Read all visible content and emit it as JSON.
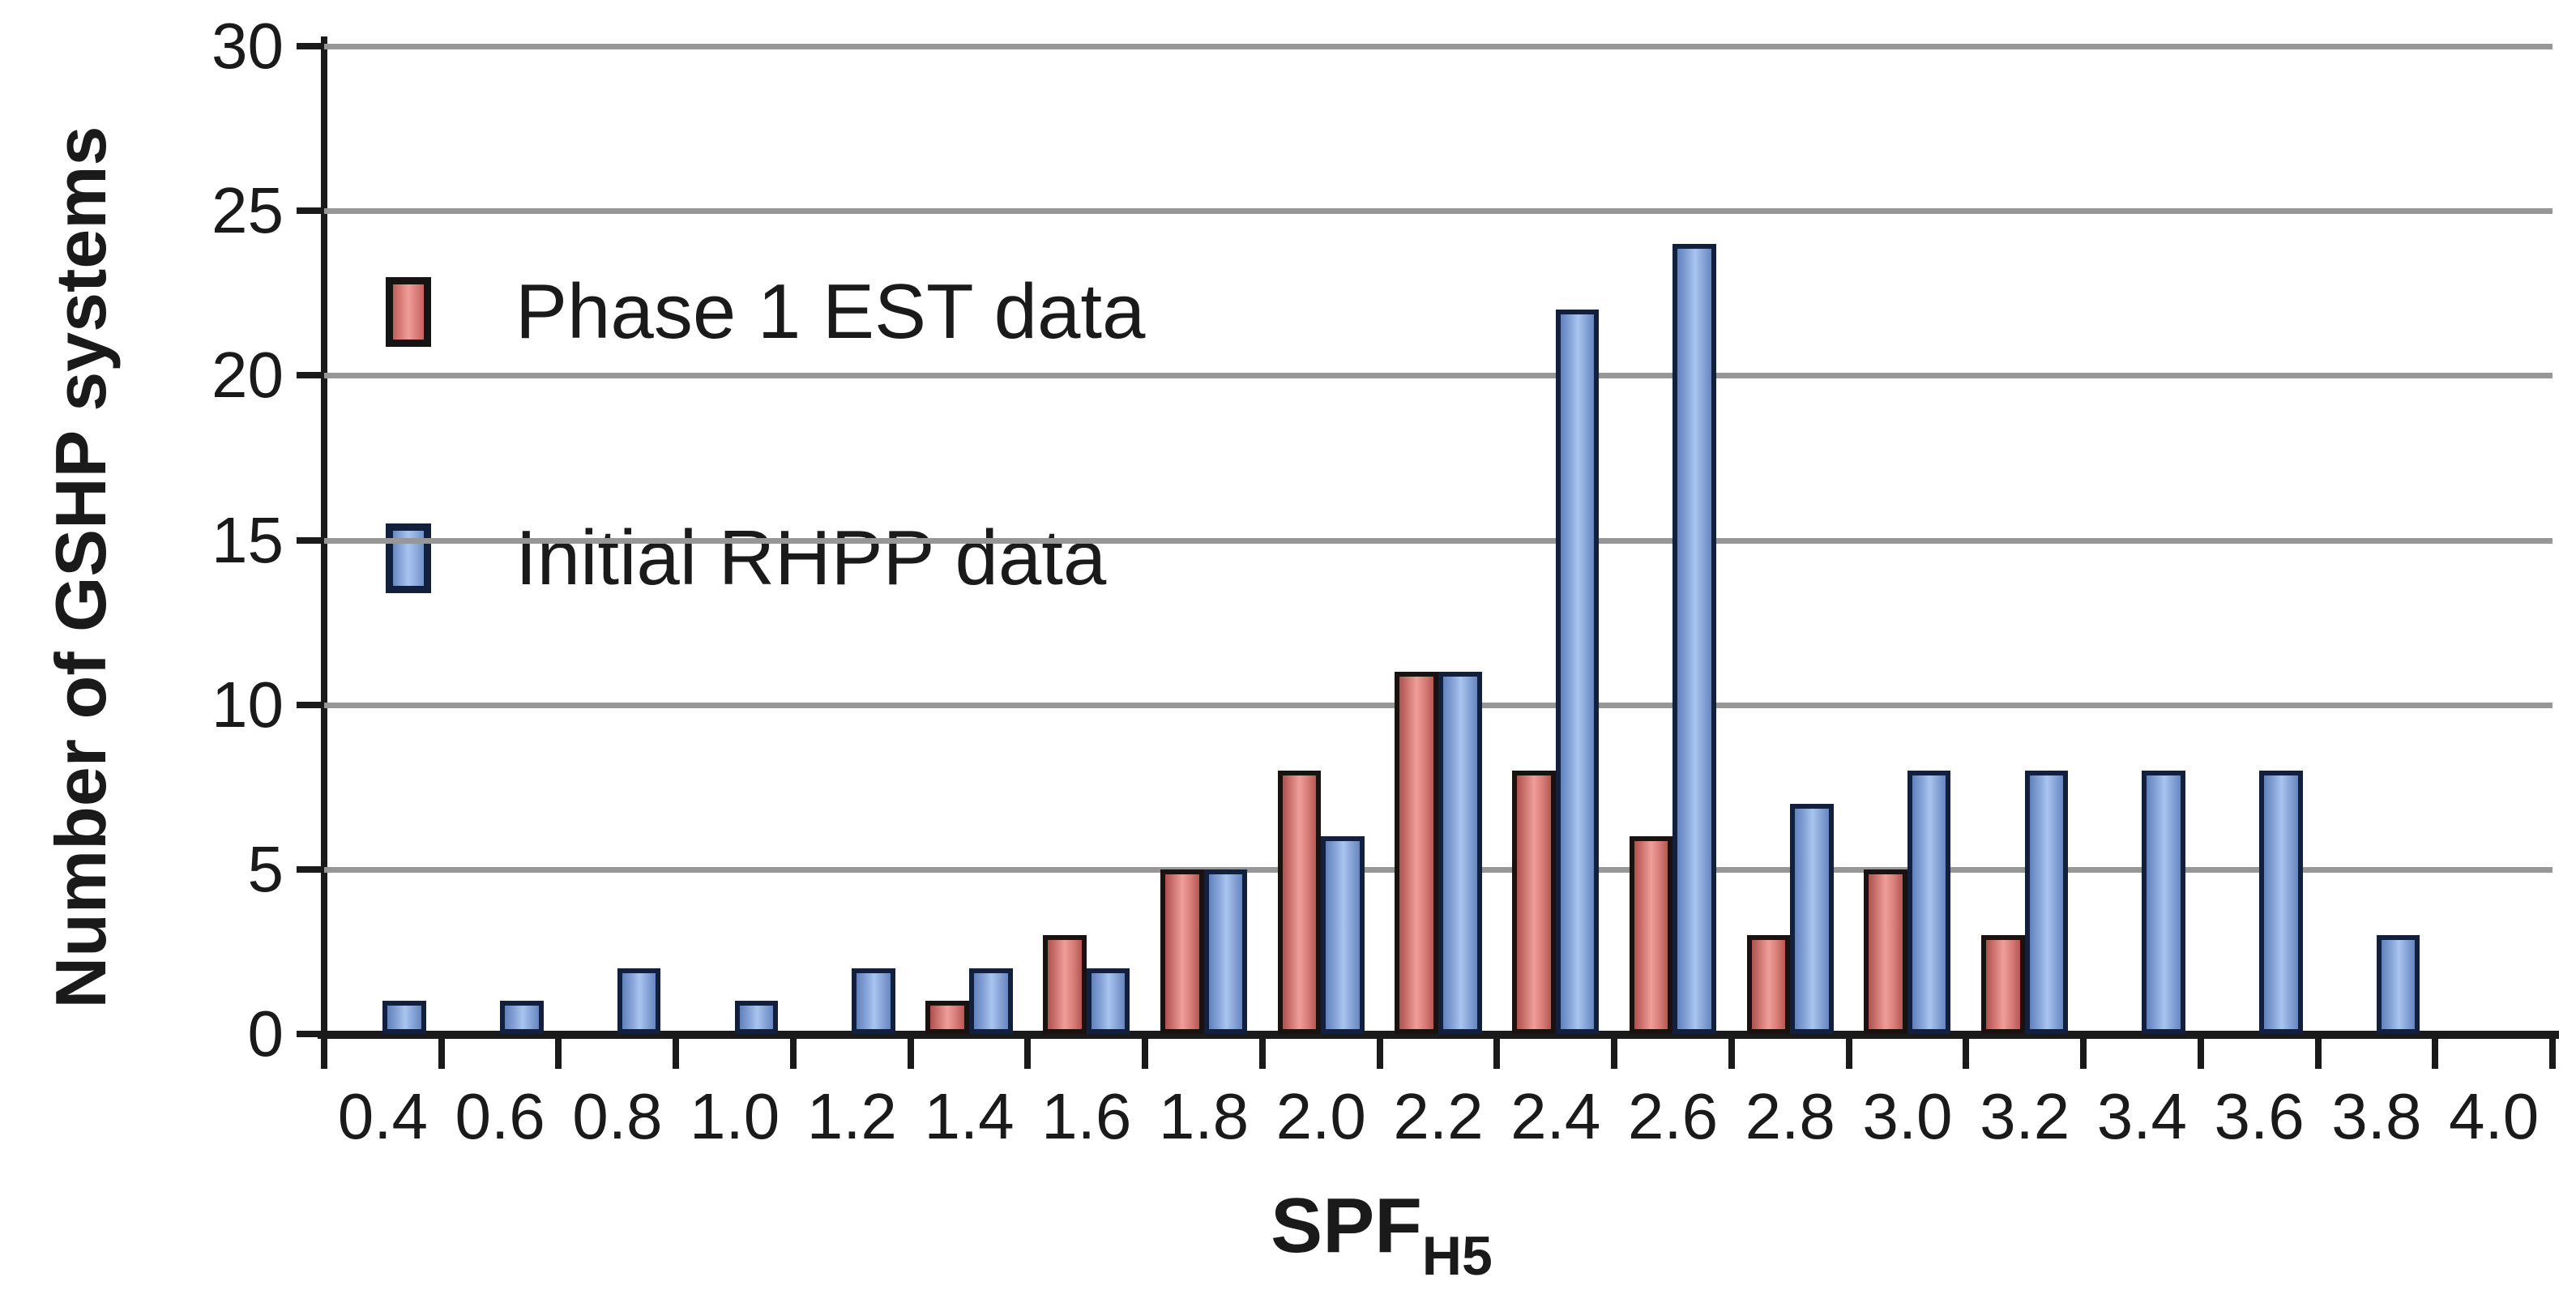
{
  "chart_data": {
    "type": "bar",
    "title": "",
    "ylabel": "Number of GSHP systems",
    "xlabel": "SPF",
    "xlabel_subscript": "H5",
    "categories": [
      "0.4",
      "0.6",
      "0.8",
      "1.0",
      "1.2",
      "1.4",
      "1.6",
      "1.8",
      "2.0",
      "2.2",
      "2.4",
      "2.6",
      "2.8",
      "3.0",
      "3.2",
      "3.4",
      "3.6",
      "3.8",
      "4.0"
    ],
    "series": [
      {
        "name": "Phase 1 EST data",
        "color": "#d97f7b",
        "values": [
          0,
          0,
          0,
          0,
          0,
          1,
          3,
          5,
          8,
          11,
          8,
          6,
          3,
          5,
          3,
          0,
          0,
          0,
          0
        ]
      },
      {
        "name": "Initial RHPP data",
        "color": "#88a5d8",
        "values": [
          1,
          1,
          2,
          1,
          2,
          2,
          2,
          5,
          6,
          11,
          22,
          24,
          7,
          8,
          8,
          8,
          8,
          3,
          0
        ]
      }
    ],
    "ylim": [
      0,
      30
    ],
    "yticks": [
      0,
      5,
      10,
      15,
      20,
      25,
      30
    ],
    "grid": "horizontal",
    "legend_position": "upper-left inside plot"
  },
  "palette": {
    "red_mid": "#ef9e9a",
    "red_edge": "#ae514d",
    "red_border": "#1a1210",
    "blue_mid": "#a9c4ef",
    "blue_edge": "#5f81bd",
    "blue_border": "#13203d",
    "gridline": "#979797",
    "axis": "#1a1a1a",
    "text": "#1a1a1a",
    "background": "#ffffff"
  }
}
